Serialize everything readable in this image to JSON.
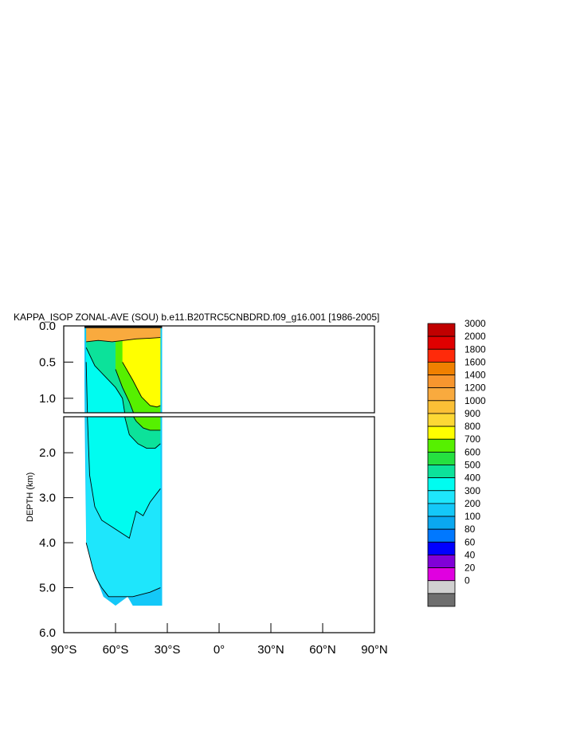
{
  "chart_data": {
    "type": "contour",
    "title": "KAPPA_ISOP ZONAL-AVE (SOU) b.e11.B20TRC5CNBDRD.f09_g16.001 [1986-2005]",
    "ylabel": "DEPTH (km)",
    "x_ticks": [
      "90°S",
      "60°S",
      "30°S",
      "0°",
      "30°N",
      "60°N",
      "90°N"
    ],
    "x_tick_values": [
      -90,
      -60,
      -30,
      0,
      30,
      60,
      90
    ],
    "xlim": [
      -90,
      90
    ],
    "upper_panel": {
      "ylim": [
        0,
        1.2
      ],
      "y_ticks": [
        "0.0",
        "0.5",
        "1.0"
      ],
      "y_tick_values": [
        0,
        0.5,
        1.0
      ]
    },
    "lower_panel": {
      "ylim": [
        1.2,
        6.0
      ],
      "y_ticks": [
        "2.0",
        "3.0",
        "4.0",
        "5.0",
        "6.0"
      ],
      "y_tick_values": [
        2,
        3,
        4,
        5,
        6
      ]
    },
    "colorbar": {
      "levels": [
        "3000",
        "2000",
        "1800",
        "1600",
        "1400",
        "1200",
        "1000",
        "900",
        "800",
        "700",
        "600",
        "500",
        "400",
        "300",
        "200",
        "100",
        "80",
        "60",
        "40",
        "20",
        "0"
      ],
      "colors": [
        "#C00000",
        "#E00000",
        "#FF2A0A",
        "#F08000",
        "#F8962E",
        "#F9AA3E",
        "#FBC036",
        "#FDD835",
        "#FFFF00",
        "#56F000",
        "#25E040",
        "#0CE29A",
        "#00FCF0",
        "#1EE6FC",
        "#14C8F8",
        "#0AA8F0",
        "#0078FF",
        "#0000FF",
        "#8000D8",
        "#E000E0",
        "#D0D0D0",
        "#6E6E6E"
      ]
    },
    "data_region": {
      "lon_min": -78,
      "lon_max": -33,
      "max_depth_km": 5.4
    },
    "depth_profile": [
      [
        -78,
        0.8
      ],
      [
        -77,
        4.0
      ],
      [
        -74,
        4.3
      ],
      [
        -72,
        4.7
      ],
      [
        -70,
        4.9
      ],
      [
        -67,
        5.2
      ],
      [
        -60,
        5.4
      ],
      [
        -53,
        5.2
      ],
      [
        -50,
        5.4
      ],
      [
        -33,
        5.4
      ]
    ],
    "contour_depths": [
      {
        "level": 100,
        "points": [
          [
            -77,
            4.0
          ],
          [
            -75,
            4.3
          ],
          [
            -73,
            4.6
          ],
          [
            -71,
            4.8
          ],
          [
            -68,
            5.0
          ],
          [
            -64,
            5.2
          ],
          [
            -50,
            5.2
          ],
          [
            -40,
            5.1
          ],
          [
            -34,
            5.0
          ]
        ]
      },
      {
        "level": 300,
        "points": [
          [
            -77,
            0.5
          ],
          [
            -76,
            1.5
          ],
          [
            -75,
            2.5
          ],
          [
            -72,
            3.2
          ],
          [
            -68,
            3.5
          ],
          [
            -60,
            3.7
          ],
          [
            -52,
            3.9
          ],
          [
            -48,
            3.3
          ],
          [
            -44,
            3.4
          ],
          [
            -40,
            3.1
          ],
          [
            -34,
            2.8
          ]
        ]
      },
      {
        "level": 400,
        "points": [
          [
            -77,
            0.3
          ],
          [
            -72,
            0.55
          ],
          [
            -66,
            0.7
          ],
          [
            -60,
            0.85
          ],
          [
            -56,
            1.0
          ],
          [
            -52,
            1.6
          ],
          [
            -47,
            1.8
          ],
          [
            -42,
            1.9
          ],
          [
            -37,
            1.9
          ],
          [
            -34,
            1.8
          ]
        ]
      },
      {
        "level": 500,
        "points": [
          [
            -60,
            0.6
          ],
          [
            -56,
            0.85
          ],
          [
            -52,
            1.05
          ],
          [
            -48,
            1.3
          ],
          [
            -44,
            1.45
          ],
          [
            -40,
            1.5
          ],
          [
            -36,
            1.5
          ],
          [
            -34,
            1.5
          ]
        ]
      },
      {
        "level": 700,
        "points": [
          [
            -56,
            0.5
          ],
          [
            -50,
            0.75
          ],
          [
            -45,
            0.98
          ],
          [
            -40,
            1.1
          ],
          [
            -36,
            1.12
          ],
          [
            -34,
            1.1
          ]
        ]
      },
      {
        "level": 900,
        "points": [
          [
            -77,
            0.22
          ],
          [
            -70,
            0.2
          ],
          [
            -62,
            0.22
          ],
          [
            -55,
            0.2
          ],
          [
            -48,
            0.18
          ],
          [
            -40,
            0.17
          ],
          [
            -34,
            0.16
          ]
        ]
      }
    ]
  }
}
